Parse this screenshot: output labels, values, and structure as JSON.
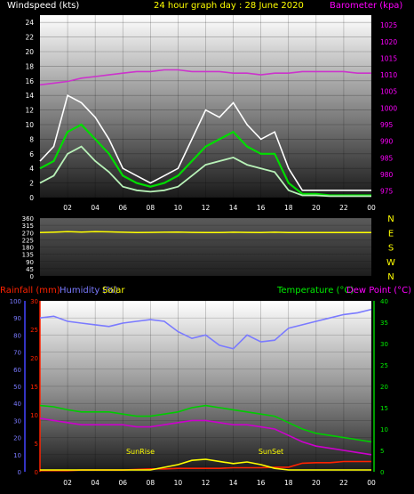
{
  "chart_data": [
    {
      "type": "line",
      "title": "24 hour graph day : 28 June 2020",
      "left_label": "Windspeed (kts)",
      "right_label": "Barometer (kpa)",
      "x_ticks": [
        "02",
        "04",
        "06",
        "08",
        "10",
        "12",
        "14",
        "16",
        "18",
        "20",
        "22",
        "00"
      ],
      "y_left_ticks": [
        "0",
        "2",
        "4",
        "6",
        "8",
        "10",
        "12",
        "14",
        "16",
        "18",
        "20",
        "22",
        "24"
      ],
      "y_right_ticks": [
        "975",
        "980",
        "985",
        "990",
        "995",
        "1000",
        "1005",
        "1010",
        "1015",
        "1020",
        "1025"
      ],
      "ylim_left": [
        0,
        25
      ],
      "ylim_right": [
        973,
        1028
      ],
      "x_hours": [
        0,
        1,
        2,
        3,
        4,
        5,
        6,
        7,
        8,
        9,
        10,
        11,
        12,
        13,
        14,
        15,
        16,
        17,
        18,
        19,
        20,
        21,
        22,
        23,
        24
      ],
      "series": [
        {
          "color": "#ffffff",
          "axis": "left",
          "values": [
            5,
            7,
            14,
            13,
            11,
            8,
            4,
            3,
            2,
            3,
            4,
            8,
            12,
            11,
            13,
            10,
            8,
            9,
            4,
            1,
            1,
            1,
            1,
            1,
            1
          ]
        },
        {
          "color": "#00dd00",
          "axis": "left",
          "values": [
            4,
            5,
            9,
            10,
            8,
            6,
            3,
            2,
            1.5,
            2,
            3,
            5,
            7,
            8,
            9,
            7,
            6,
            6,
            2,
            0.5,
            0.5,
            0.3,
            0.3,
            0.3,
            0.3
          ]
        },
        {
          "color": "#b8f2b8",
          "axis": "left",
          "values": [
            2,
            3,
            6,
            7,
            5,
            3.5,
            1.5,
            1,
            0.8,
            1,
            1.5,
            3,
            4.5,
            5,
            5.5,
            4.5,
            4,
            3.5,
            1,
            0.3,
            0.3,
            0.2,
            0.2,
            0.2,
            0.2
          ]
        },
        {
          "color": "#cc33cc",
          "axis": "right",
          "values": [
            1007,
            1007.5,
            1008,
            1009,
            1009.5,
            1010,
            1010.5,
            1011,
            1011,
            1011.5,
            1011.5,
            1011,
            1011,
            1011,
            1010.5,
            1010.5,
            1010,
            1010.5,
            1010.5,
            1011,
            1011,
            1011,
            1011,
            1010.5,
            1010.5
          ]
        }
      ]
    },
    {
      "type": "line",
      "title": "",
      "y_left_ticks": [
        "0",
        "45",
        "90",
        "135",
        "180",
        "225",
        "270",
        "315",
        "360"
      ],
      "compass_labels": [
        "N",
        "W",
        "S",
        "E",
        "N"
      ],
      "ylim": [
        0,
        360
      ],
      "x_hours": [
        0,
        1,
        2,
        3,
        4,
        5,
        6,
        7,
        8,
        9,
        10,
        11,
        12,
        13,
        14,
        15,
        16,
        17,
        18,
        19,
        20,
        21,
        22,
        23,
        24
      ],
      "series": [
        {
          "color": "#ffff00",
          "values": [
            270,
            272,
            275,
            273,
            276,
            274,
            272,
            270,
            271,
            272,
            273,
            271,
            270,
            270,
            272,
            271,
            270,
            272,
            270,
            270,
            270,
            270,
            270,
            270,
            270
          ]
        }
      ]
    },
    {
      "type": "line",
      "title": "",
      "labels": {
        "rainfall": "Rainfall (mm)",
        "humidity": "Humidity (%)",
        "solar": "Solar",
        "temperature": "Temperature (°C)",
        "dewpoint": "Dew Point (°C)"
      },
      "annotations": [
        "SunRise",
        "SunSet"
      ],
      "x_ticks": [
        "02",
        "04",
        "06",
        "08",
        "10",
        "12",
        "14",
        "16",
        "18",
        "20",
        "22",
        "00"
      ],
      "y_humidity_ticks": [
        "0",
        "10",
        "20",
        "30",
        "40",
        "50",
        "60",
        "70",
        "80",
        "90",
        "100"
      ],
      "y_rain_ticks": [
        "0",
        "5",
        "10",
        "15",
        "20",
        "25",
        "30"
      ],
      "y_temp_ticks": [
        "0",
        "5",
        "10",
        "15",
        "20",
        "25",
        "30",
        "35",
        "40"
      ],
      "ylim_humidity": [
        0,
        100
      ],
      "ylim_rain": [
        0,
        30
      ],
      "ylim_temp": [
        0,
        40
      ],
      "x_hours": [
        0,
        1,
        2,
        3,
        4,
        5,
        6,
        7,
        8,
        9,
        10,
        11,
        12,
        13,
        14,
        15,
        16,
        17,
        18,
        19,
        20,
        21,
        22,
        23,
        24
      ],
      "series": [
        {
          "color": "#7a7aff",
          "axis": "humidity",
          "values": [
            90,
            91,
            88,
            87,
            86,
            85,
            87,
            88,
            89,
            88,
            82,
            78,
            80,
            74,
            72,
            80,
            76,
            77,
            84,
            86,
            88,
            90,
            92,
            93,
            95
          ]
        },
        {
          "color": "#00cc00",
          "axis": "temp",
          "values": [
            15.5,
            15.2,
            14.5,
            14,
            14,
            14,
            13.5,
            13,
            13,
            13.5,
            14,
            15,
            15.5,
            15,
            14.5,
            14,
            13.5,
            13,
            11.5,
            10,
            9,
            8.5,
            8,
            7.5,
            7
          ]
        },
        {
          "color": "#cc00cc",
          "axis": "temp",
          "values": [
            12.5,
            12,
            11.5,
            11,
            11,
            11,
            11,
            10.5,
            10.5,
            11,
            11.5,
            12,
            12,
            11.5,
            11,
            11,
            10.5,
            10,
            8.5,
            7,
            6,
            5.5,
            5,
            4.5,
            4
          ]
        },
        {
          "color": "#ff2200",
          "axis": "rain",
          "values": [
            0.2,
            0.2,
            0.2,
            0.3,
            0.3,
            0.3,
            0.3,
            0.4,
            0.5,
            0.5,
            0.6,
            0.6,
            0.6,
            0.6,
            0.7,
            0.7,
            0.7,
            0.8,
            0.8,
            1.5,
            1.6,
            1.6,
            1.8,
            1.8,
            1.8
          ]
        },
        {
          "color": "#ffff00",
          "axis": "solar",
          "values": [
            0,
            0,
            0,
            0,
            0,
            0,
            0,
            0,
            0,
            0.5,
            1.0,
            1.8,
            2.0,
            1.6,
            1.2,
            1.5,
            1.0,
            0.3,
            0,
            0,
            0,
            0,
            0,
            0,
            0
          ]
        }
      ]
    }
  ]
}
